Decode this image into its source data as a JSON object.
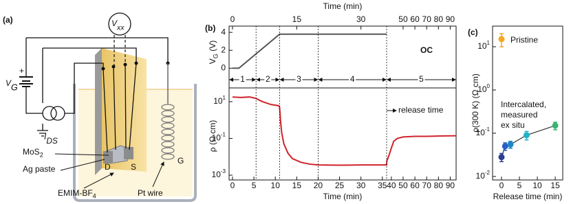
{
  "panel_labels": [
    "(a)",
    "(b)",
    "(c)"
  ],
  "schematic": {
    "vxx": {
      "main": "V",
      "sub": "xx"
    },
    "vg": {
      "main": "V",
      "sub": "G"
    },
    "plus": "+",
    "ids": {
      "main": "I",
      "sub": "DS"
    },
    "mos2": {
      "main": "MoS",
      "sub": "2"
    },
    "ag_paste": "Ag paste",
    "emim": {
      "main": "EMIM-BF",
      "sub": "4"
    },
    "pt_wire": "Pt wire",
    "drain": "D",
    "source": "S",
    "gate": "G"
  },
  "chart_data": [
    {
      "type": "line",
      "x_label": "Time (min)",
      "y_label": {
        "main": "V",
        "sub": "G",
        "rest": " (V)"
      },
      "xlim": [
        -0.8,
        95
      ],
      "xticks": [
        0,
        15,
        30,
        50,
        60,
        70,
        80,
        90
      ],
      "ylim": [
        -2.2,
        4.7
      ],
      "yticks": [
        0,
        2,
        4
      ],
      "phase_boundaries": [
        5.5,
        11,
        20,
        36
      ],
      "phases": [
        "1",
        "2",
        "3",
        "4",
        "5"
      ],
      "annotation": "OC",
      "series": [
        {
          "color": "#555555",
          "x": [
            0,
            1.5,
            11,
            36
          ],
          "values": [
            0,
            0,
            3.8,
            3.8
          ]
        }
      ]
    },
    {
      "type": "line",
      "log_y": true,
      "x_label": "Time (min)",
      "y_label": "ρ (Ω cm)",
      "xlim": [
        -0.8,
        95
      ],
      "xticks": [
        0,
        5,
        10,
        15,
        20,
        25,
        30,
        35,
        40,
        50,
        60,
        70,
        80,
        90
      ],
      "ylim": [
        0.00055,
        56
      ],
      "yticks": [
        {
          "value": 10,
          "label": "10",
          "exponent": "1"
        },
        {
          "value": 0.1,
          "label": "10",
          "exponent": "-1"
        },
        {
          "value": 0.001,
          "label": "10",
          "exponent": "-3"
        }
      ],
      "annotation": "release time",
      "annotation_x": 36,
      "series": [
        {
          "color": "#d0232a",
          "x": [
            0,
            2,
            4,
            5.5,
            7,
            9,
            10.8,
            11,
            11.2,
            11.5,
            12,
            13,
            14,
            16,
            18,
            20,
            25,
            30,
            36,
            36.2,
            37,
            38,
            40,
            42,
            45,
            50,
            60,
            70,
            80,
            95
          ],
          "values": [
            18,
            17,
            18,
            15,
            10,
            7,
            6,
            5,
            1,
            0.2,
            0.05,
            0.015,
            0.008,
            0.005,
            0.004,
            0.0036,
            0.0035,
            0.0036,
            0.0036,
            0.006,
            0.008,
            0.012,
            0.03,
            0.07,
            0.1,
            0.12,
            0.13,
            0.13,
            0.135,
            0.14
          ]
        }
      ]
    },
    {
      "type": "scatter",
      "log_y": true,
      "x_label": "Release time (min)",
      "y_label": "ρ(300 K) (Ω cm)",
      "xlim": [
        -2.5,
        17.1
      ],
      "xticks": [
        0,
        5,
        10,
        15
      ],
      "ylim": [
        0.0083,
        30
      ],
      "yticks": [
        {
          "value": 10,
          "label": "10",
          "exponent": "1"
        },
        {
          "value": 1,
          "label": "10",
          "exponent": "0"
        },
        {
          "value": 0.1,
          "label": "10",
          "exponent": "-1"
        },
        {
          "value": 0.01,
          "label": "10",
          "exponent": "-2"
        }
      ],
      "annotations": [
        "Pristine",
        [
          "Intercalated,",
          "measured",
          "ex situ"
        ]
      ],
      "series": [
        {
          "x": [
            0
          ],
          "values": [
            15
          ],
          "errors": [
            5
          ],
          "colors": [
            "#f5a623"
          ]
        },
        {
          "x": [
            0,
            1,
            2.5,
            7,
            15
          ],
          "values": [
            0.028,
            0.05,
            0.055,
            0.09,
            0.15
          ],
          "errors": [
            0.006,
            0.01,
            0.01,
            0.02,
            0.03
          ],
          "colors": [
            "#2c3e91",
            "#2a5fc4",
            "#1f86c6",
            "#20b2c8",
            "#3cb371"
          ],
          "line_color": "#333333"
        }
      ]
    }
  ]
}
